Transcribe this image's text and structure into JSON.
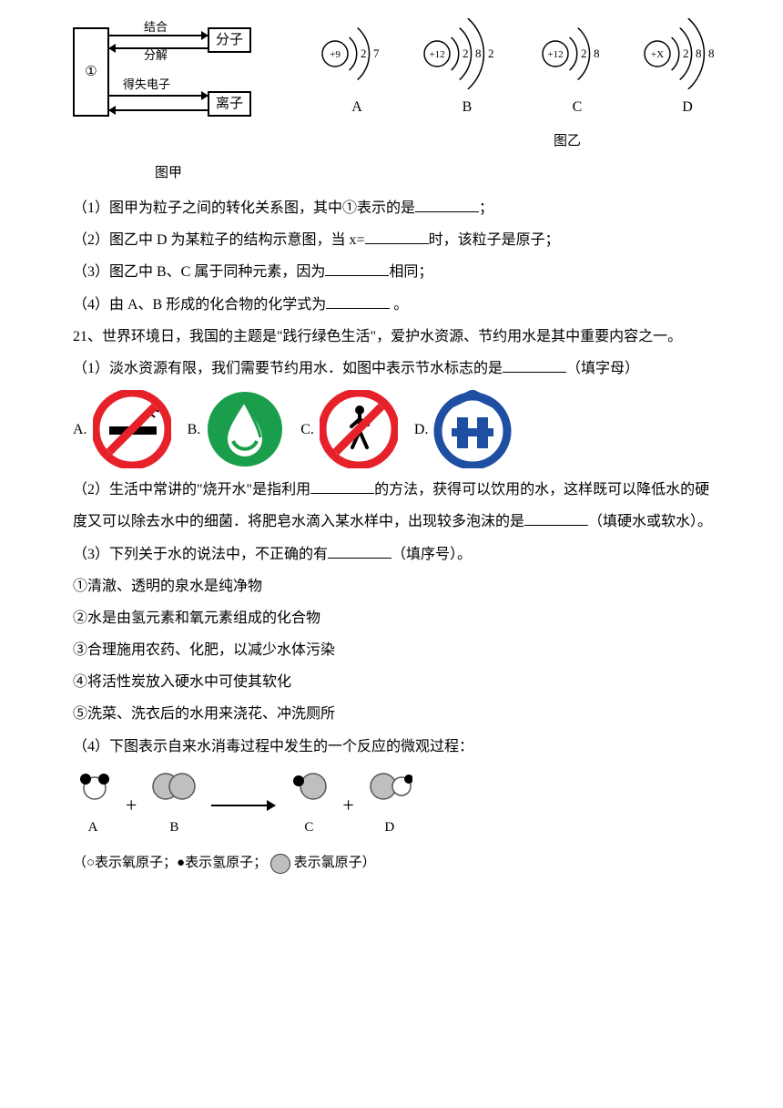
{
  "diagram_jia": {
    "box1": "①",
    "box_fenzi": "分子",
    "box_lizi": "离子",
    "lbl_jiehe": "结合",
    "lbl_fenjie": "分解",
    "lbl_deshi": "得失电子",
    "caption": "图甲"
  },
  "diagram_yi": {
    "caption": "图乙",
    "atoms": [
      {
        "label": "A",
        "nucleus": "+9",
        "shells": [
          2,
          7
        ]
      },
      {
        "label": "B",
        "nucleus": "+12",
        "shells": [
          2,
          8,
          2
        ]
      },
      {
        "label": "C",
        "nucleus": "+12",
        "shells": [
          2,
          8
        ]
      },
      {
        "label": "D",
        "nucleus": "+X",
        "shells": [
          2,
          8,
          8
        ]
      }
    ]
  },
  "q1": "（1）图甲为粒子之间的转化关系图，其中①表示的是",
  "q1_end": "；",
  "q2": "（2）图乙中 D 为某粒子的结构示意图，当 x=",
  "q2_end": "时，该粒子是原子；",
  "q3": "（3）图乙中 B、C 属于同种元素，因为",
  "q3_end": "相同；",
  "q4": "（4）由 A、B 形成的化合物的化学式为",
  "q4_end": " 。",
  "q21_intro": "21、世界环境日，我国的主题是\"践行绿色生活\"，爱护水资源、节约用水是其中重要内容之一。",
  "q21_1a": "（1）淡水资源有限，我们需要节约用水．如图中表示节水标志的是",
  "q21_1b": "（填字母）",
  "signs": {
    "A": "A.",
    "B": "B.",
    "C": "C.",
    "D": "D."
  },
  "q21_2a": "（2）生活中常讲的\"烧开水\"是指利用",
  "q21_2b": "的方法，获得可以饮用的水，这样既可以降低水的硬度又可以除去水中的细菌．将肥皂水滴入某水样中，出现较多泡沫的是",
  "q21_2c": "（填硬水或软水）。",
  "q21_3": "（3）下列关于水的说法中，不正确的有",
  "q21_3_end": "（填序号）。",
  "opt1": "①清澈、透明的泉水是纯净物",
  "opt2": "②水是由氢元素和氧元素组成的化合物",
  "opt3": "③合理施用农药、化肥，以减少水体污染",
  "opt4": "④将活性炭放入硬水中可使其软化",
  "opt5": "⑤洗菜、洗衣后的水用来浇花、冲洗厕所",
  "q21_4": "（4）下图表示自来水消毒过程中发生的一个反应的微观过程：",
  "reaction": {
    "labels": [
      "A",
      "B",
      "C",
      "D"
    ],
    "colors": {
      "oxygen": "#ffffff",
      "hydrogen": "#000000",
      "chlorine": "#bfbfbf",
      "stroke": "#555555"
    }
  },
  "legend": {
    "pre": "（○表示氧原子；●表示氢原子；",
    "cl": "表示氯原子）"
  },
  "style": {
    "red": "#e62129",
    "green": "#1a9e4b",
    "blue": "#1e4fa3",
    "black": "#000000",
    "white": "#ffffff"
  }
}
